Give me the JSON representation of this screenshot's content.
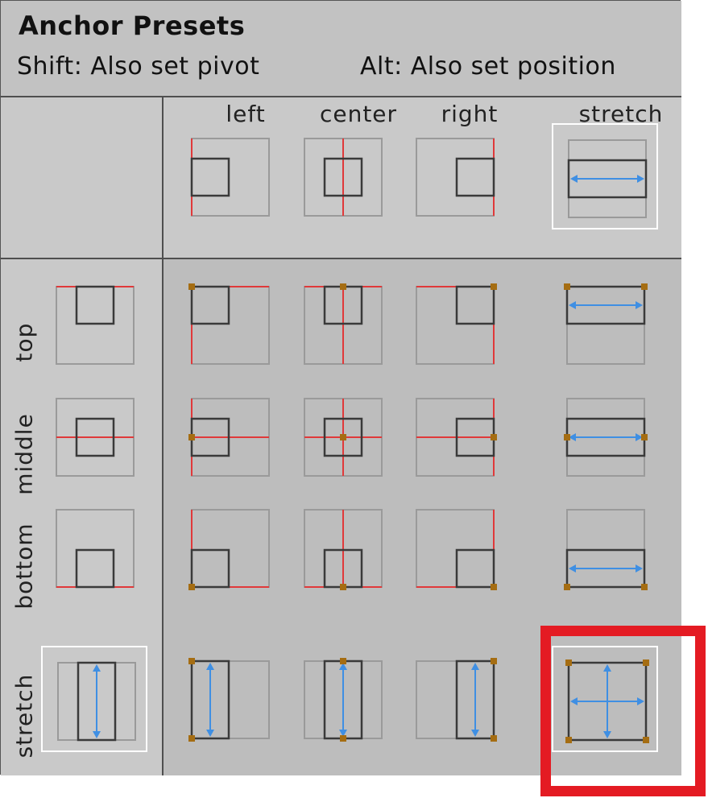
{
  "header": {
    "title": "Anchor Presets",
    "shift_hint": "Shift: Also set pivot",
    "alt_hint": "Alt: Also set position"
  },
  "columns": [
    "left",
    "center",
    "right",
    "stretch"
  ],
  "rows": [
    "top",
    "middle",
    "bottom",
    "stretch"
  ],
  "presets": {
    "horizontal": [
      {
        "h": "left"
      },
      {
        "h": "center"
      },
      {
        "h": "right"
      },
      {
        "h": "stretch",
        "selected": true
      }
    ],
    "vertical": [
      {
        "v": "top"
      },
      {
        "v": "middle"
      },
      {
        "v": "bottom"
      },
      {
        "v": "stretch",
        "selected": true
      }
    ],
    "grid": [
      [
        {
          "h": "left",
          "v": "top"
        },
        {
          "h": "center",
          "v": "top"
        },
        {
          "h": "right",
          "v": "top"
        },
        {
          "h": "stretch",
          "v": "top"
        }
      ],
      [
        {
          "h": "left",
          "v": "middle"
        },
        {
          "h": "center",
          "v": "middle"
        },
        {
          "h": "right",
          "v": "middle"
        },
        {
          "h": "stretch",
          "v": "middle"
        }
      ],
      [
        {
          "h": "left",
          "v": "bottom"
        },
        {
          "h": "center",
          "v": "bottom"
        },
        {
          "h": "right",
          "v": "bottom"
        },
        {
          "h": "stretch",
          "v": "bottom"
        }
      ],
      [
        {
          "h": "left",
          "v": "stretch"
        },
        {
          "h": "center",
          "v": "stretch"
        },
        {
          "h": "right",
          "v": "stretch"
        },
        {
          "h": "stretch",
          "v": "stretch",
          "selected": true
        }
      ]
    ]
  },
  "colors": {
    "anchor_line": "#e0393a",
    "anchor_dot": "#a56d12",
    "stretch_arrow": "#3f8fe3",
    "outline": "#9a9a9a",
    "rect": "#3a3a3a",
    "highlight": "#e41b23"
  }
}
